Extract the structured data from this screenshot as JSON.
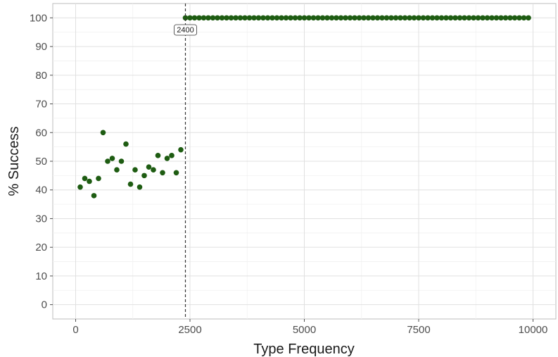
{
  "chart_data": {
    "type": "scatter",
    "xlabel": "Type Frequency",
    "ylabel": "% Success",
    "xlim": [
      -500,
      10500
    ],
    "ylim": [
      -5,
      105
    ],
    "x_ticks": [
      0,
      2500,
      5000,
      7500,
      10000
    ],
    "x_tick_labels": [
      "0",
      "2500",
      "5000",
      "7500",
      "10000"
    ],
    "y_ticks": [
      0,
      10,
      20,
      30,
      40,
      50,
      60,
      70,
      80,
      90,
      100
    ],
    "y_tick_labels": [
      "0",
      "10",
      "20",
      "30",
      "40",
      "50",
      "60",
      "70",
      "80",
      "90",
      "100"
    ],
    "grid": true,
    "point_color": "#1e5c12",
    "vline": {
      "x": 2400,
      "label": "2400",
      "style": "dashed"
    },
    "points_low": [
      [
        100,
        41
      ],
      [
        200,
        44
      ],
      [
        300,
        43
      ],
      [
        400,
        38
      ],
      [
        500,
        44
      ],
      [
        600,
        60
      ],
      [
        700,
        50
      ],
      [
        800,
        51
      ],
      [
        900,
        47
      ],
      [
        1000,
        50
      ],
      [
        1100,
        56
      ],
      [
        1200,
        42
      ],
      [
        1300,
        47
      ],
      [
        1400,
        41
      ],
      [
        1500,
        45
      ],
      [
        1600,
        48
      ],
      [
        1700,
        47
      ],
      [
        1800,
        52
      ],
      [
        1900,
        46
      ],
      [
        2000,
        51
      ],
      [
        2100,
        52
      ],
      [
        2200,
        46
      ],
      [
        2300,
        54
      ]
    ],
    "high_series": {
      "x_start": 2400,
      "x_end": 9900,
      "step": 100,
      "y": 100
    }
  }
}
